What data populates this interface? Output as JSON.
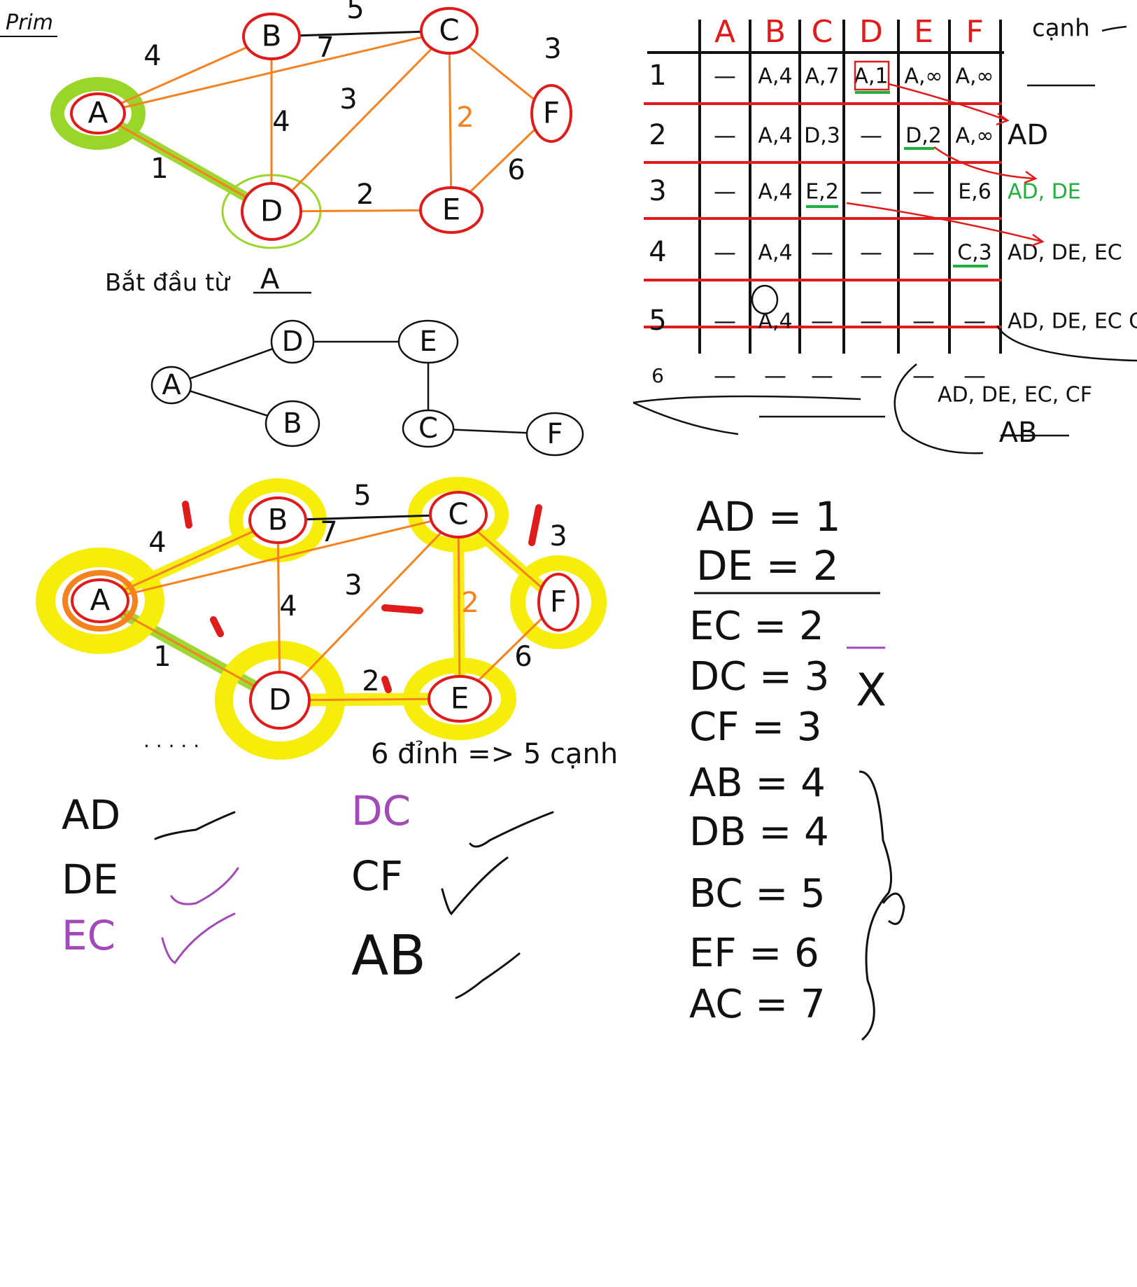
{
  "colors": {
    "ink": "#111111",
    "red": "#e01b1b",
    "orange": "#f5821f",
    "green": "#20b040",
    "lime": "#9ad62a",
    "yellow": "#f6ee0a",
    "purple": "#a24ab8"
  },
  "title": "Prim",
  "graph": {
    "nodes": [
      "A",
      "B",
      "C",
      "D",
      "E",
      "F"
    ],
    "edges": [
      {
        "from": "A",
        "to": "B",
        "weight": "4"
      },
      {
        "from": "A",
        "to": "C",
        "weight": "7"
      },
      {
        "from": "A",
        "to": "D",
        "weight": "1"
      },
      {
        "from": "B",
        "to": "C",
        "weight": "5"
      },
      {
        "from": "B",
        "to": "D",
        "weight": "4"
      },
      {
        "from": "C",
        "to": "D",
        "weight": "3"
      },
      {
        "from": "C",
        "to": "E",
        "weight": "2"
      },
      {
        "from": "C",
        "to": "F",
        "weight": "3"
      },
      {
        "from": "D",
        "to": "E",
        "weight": "2"
      },
      {
        "from": "E",
        "to": "F",
        "weight": "6"
      }
    ],
    "start_note": "Bắt đầu từ",
    "start_vertex": "A"
  },
  "tree": {
    "nodes": [
      "A",
      "D",
      "E",
      "B",
      "C",
      "F"
    ]
  },
  "table": {
    "columns": [
      "A",
      "B",
      "C",
      "D",
      "E",
      "F"
    ],
    "edge_header": "cạnh",
    "rows": [
      {
        "step": "1",
        "cells": [
          "—",
          "A,4",
          "A,7",
          "A,1",
          "A,∞",
          "A,∞"
        ],
        "edges": ""
      },
      {
        "step": "2",
        "cells": [
          "—",
          "A,4",
          "D,3",
          "—",
          "D,2",
          "A,∞"
        ],
        "edges": "AD"
      },
      {
        "step": "3",
        "cells": [
          "—",
          "A,4",
          "E,2",
          "—",
          "—",
          "E,6"
        ],
        "edges": "AD, DE"
      },
      {
        "step": "4",
        "cells": [
          "—",
          "A,4",
          "—",
          "—",
          "—",
          "C,3"
        ],
        "edges": "AD, DE, EC"
      },
      {
        "step": "5",
        "cells": [
          "—",
          "A,4",
          "—",
          "—",
          "—",
          "—"
        ],
        "edges": "AD, DE, EC CF,"
      },
      {
        "step": "6",
        "cells": [
          "—",
          "—",
          "—",
          "—",
          "—",
          "—"
        ],
        "edges": ""
      }
    ],
    "final_edges": "AD, DE, EC, CF",
    "final_extra": "AB"
  },
  "vertex_edge_note": "6 đỉnh => 5 cạnh",
  "checklist": {
    "col1": [
      "AD",
      "DE",
      "EC"
    ],
    "col2": [
      "DC",
      "CF",
      "AB"
    ]
  },
  "sorted_edges": {
    "top": [
      {
        "label": "AD = 1"
      },
      {
        "label": "DE = 2"
      }
    ],
    "rest": [
      {
        "label": "EC = 2"
      },
      {
        "label": "DC = 3",
        "mark": "X"
      },
      {
        "label": "CF = 3"
      },
      {
        "label": "AB = 4"
      },
      {
        "label": "DB = 4"
      },
      {
        "label": "BC = 5"
      },
      {
        "label": "EF = 6"
      },
      {
        "label": "AC = 7"
      }
    ]
  }
}
